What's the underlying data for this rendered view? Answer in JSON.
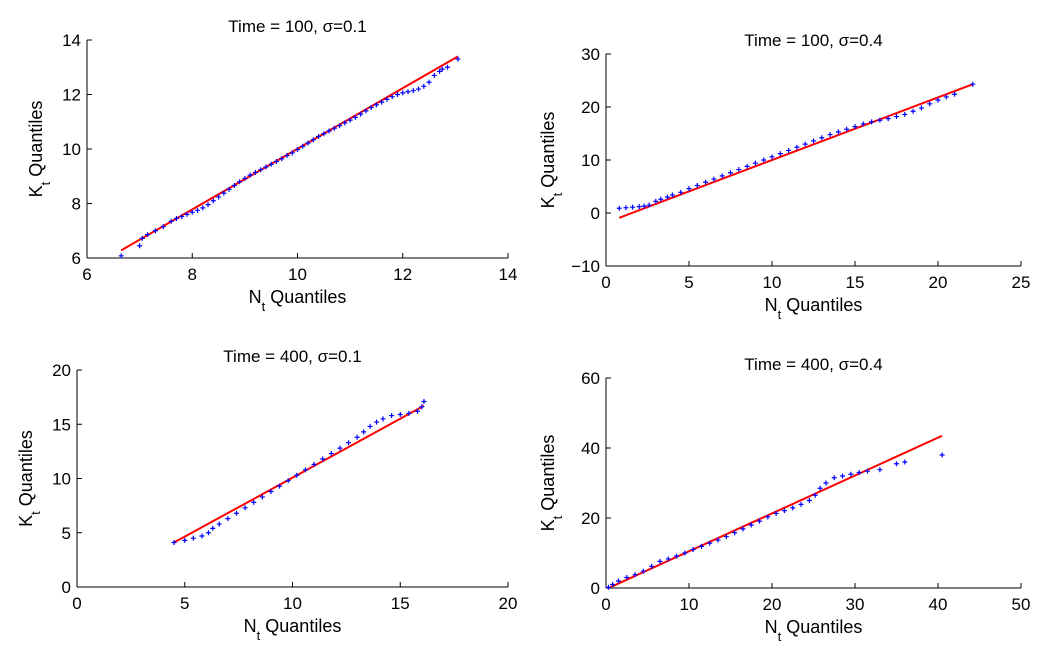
{
  "colors": {
    "points": "#0000ff",
    "fit_line": "#ff0000",
    "axes": "#000000"
  },
  "chart_data": [
    {
      "type": "scatter",
      "title": "Time = 100, σ=0.1",
      "xlabel": {
        "main": "N",
        "sub": "t",
        "rest": " Quantiles"
      },
      "ylabel": {
        "main": "K",
        "sub": "t",
        "rest": " Quantiles"
      },
      "xlim": [
        6,
        14
      ],
      "ylim": [
        6,
        14
      ],
      "xticks": [
        6,
        8,
        10,
        12,
        14
      ],
      "yticks": [
        6,
        8,
        10,
        12,
        14
      ],
      "xticklabels": [
        "6",
        "8",
        "10",
        "12",
        "14"
      ],
      "yticklabels": [
        "6",
        "8",
        "10",
        "12",
        "14"
      ],
      "grid": false,
      "fit_line": {
        "x": [
          6.65,
          13.05
        ],
        "y": [
          6.28,
          13.4
        ]
      },
      "points": [
        [
          6.65,
          6.08
        ],
        [
          7.0,
          6.45
        ],
        [
          7.05,
          6.72
        ],
        [
          7.15,
          6.86
        ],
        [
          7.3,
          7.0
        ],
        [
          7.45,
          7.15
        ],
        [
          7.6,
          7.35
        ],
        [
          7.7,
          7.45
        ],
        [
          7.8,
          7.52
        ],
        [
          7.9,
          7.6
        ],
        [
          8.0,
          7.68
        ],
        [
          8.1,
          7.75
        ],
        [
          8.2,
          7.84
        ],
        [
          8.3,
          7.96
        ],
        [
          8.4,
          8.1
        ],
        [
          8.5,
          8.24
        ],
        [
          8.6,
          8.38
        ],
        [
          8.7,
          8.52
        ],
        [
          8.8,
          8.66
        ],
        [
          8.9,
          8.8
        ],
        [
          9.0,
          8.92
        ],
        [
          9.1,
          9.04
        ],
        [
          9.2,
          9.14
        ],
        [
          9.3,
          9.24
        ],
        [
          9.4,
          9.34
        ],
        [
          9.5,
          9.44
        ],
        [
          9.6,
          9.54
        ],
        [
          9.7,
          9.64
        ],
        [
          9.8,
          9.76
        ],
        [
          9.9,
          9.86
        ],
        [
          10.0,
          9.98
        ],
        [
          10.1,
          10.1
        ],
        [
          10.2,
          10.22
        ],
        [
          10.3,
          10.34
        ],
        [
          10.4,
          10.46
        ],
        [
          10.5,
          10.56
        ],
        [
          10.6,
          10.66
        ],
        [
          10.7,
          10.76
        ],
        [
          10.8,
          10.86
        ],
        [
          10.9,
          10.96
        ],
        [
          11.0,
          11.06
        ],
        [
          11.1,
          11.16
        ],
        [
          11.2,
          11.28
        ],
        [
          11.3,
          11.4
        ],
        [
          11.4,
          11.52
        ],
        [
          11.5,
          11.62
        ],
        [
          11.6,
          11.72
        ],
        [
          11.7,
          11.82
        ],
        [
          11.8,
          11.92
        ],
        [
          11.9,
          12.0
        ],
        [
          12.0,
          12.06
        ],
        [
          12.1,
          12.1
        ],
        [
          12.2,
          12.14
        ],
        [
          12.3,
          12.2
        ],
        [
          12.4,
          12.3
        ],
        [
          12.5,
          12.45
        ],
        [
          12.6,
          12.7
        ],
        [
          12.7,
          12.85
        ],
        [
          12.75,
          12.93
        ],
        [
          12.85,
          13.0
        ],
        [
          13.05,
          13.3
        ]
      ]
    },
    {
      "type": "scatter",
      "title": "Time = 100, σ=0.4",
      "xlabel": {
        "main": "N",
        "sub": "t",
        "rest": " Quantiles"
      },
      "ylabel": {
        "main": "K",
        "sub": "t",
        "rest": " Quantiles"
      },
      "xlim": [
        0,
        25
      ],
      "ylim": [
        -10,
        30
      ],
      "xticks": [
        0,
        5,
        10,
        15,
        20,
        25
      ],
      "yticks": [
        -10,
        0,
        10,
        20,
        30
      ],
      "xticklabels": [
        "0",
        "5",
        "10",
        "15",
        "20",
        "25"
      ],
      "yticklabels": [
        "−10",
        "0",
        "10",
        "20",
        "30"
      ],
      "grid": false,
      "fit_line": {
        "x": [
          0.8,
          22.1
        ],
        "y": [
          -0.9,
          24.3
        ]
      },
      "points": [
        [
          0.8,
          0.9
        ],
        [
          1.2,
          1.0
        ],
        [
          1.6,
          1.1
        ],
        [
          2.0,
          1.2
        ],
        [
          2.3,
          1.3
        ],
        [
          2.6,
          1.5
        ],
        [
          3.0,
          2.2
        ],
        [
          3.3,
          2.6
        ],
        [
          3.7,
          3.0
        ],
        [
          4.0,
          3.4
        ],
        [
          4.5,
          3.9
        ],
        [
          5.0,
          4.6
        ],
        [
          5.5,
          5.2
        ],
        [
          6.0,
          5.8
        ],
        [
          6.5,
          6.4
        ],
        [
          7.0,
          7.0
        ],
        [
          7.5,
          7.6
        ],
        [
          8.0,
          8.2
        ],
        [
          8.5,
          8.8
        ],
        [
          9.0,
          9.4
        ],
        [
          9.5,
          10.0
        ],
        [
          10.0,
          10.6
        ],
        [
          10.5,
          11.2
        ],
        [
          11.0,
          11.8
        ],
        [
          11.5,
          12.4
        ],
        [
          12.0,
          13.0
        ],
        [
          12.5,
          13.6
        ],
        [
          13.0,
          14.2
        ],
        [
          13.5,
          14.8
        ],
        [
          14.0,
          15.3
        ],
        [
          14.5,
          15.8
        ],
        [
          15.0,
          16.3
        ],
        [
          15.5,
          16.8
        ],
        [
          16.0,
          17.2
        ],
        [
          16.5,
          17.5
        ],
        [
          17.0,
          17.8
        ],
        [
          17.5,
          18.2
        ],
        [
          18.0,
          18.6
        ],
        [
          18.5,
          19.2
        ],
        [
          19.0,
          19.8
        ],
        [
          19.5,
          20.6
        ],
        [
          20.0,
          21.3
        ],
        [
          20.5,
          21.9
        ],
        [
          21.0,
          22.4
        ],
        [
          22.1,
          24.3
        ]
      ]
    },
    {
      "type": "scatter",
      "title": "Time = 400, σ=0.1",
      "xlabel": {
        "main": "N",
        "sub": "t",
        "rest": " Quantiles"
      },
      "ylabel": {
        "main": "K",
        "sub": "t",
        "rest": " Quantiles"
      },
      "xlim": [
        0,
        20
      ],
      "ylim": [
        0,
        20
      ],
      "xticks": [
        0,
        5,
        10,
        15,
        20
      ],
      "yticks": [
        0,
        5,
        10,
        15,
        20
      ],
      "xticklabels": [
        "0",
        "5",
        "10",
        "15",
        "20"
      ],
      "yticklabels": [
        "0",
        "5",
        "10",
        "15",
        "20"
      ],
      "grid": false,
      "fit_line": {
        "x": [
          4.5,
          16.1
        ],
        "y": [
          4.1,
          16.7
        ]
      },
      "points": [
        [
          4.5,
          4.1
        ],
        [
          5.0,
          4.3
        ],
        [
          5.4,
          4.5
        ],
        [
          5.8,
          4.7
        ],
        [
          6.1,
          5.0
        ],
        [
          6.3,
          5.4
        ],
        [
          6.6,
          5.8
        ],
        [
          7.0,
          6.3
        ],
        [
          7.4,
          6.8
        ],
        [
          7.8,
          7.3
        ],
        [
          8.2,
          7.8
        ],
        [
          8.6,
          8.3
        ],
        [
          9.0,
          8.8
        ],
        [
          9.4,
          9.3
        ],
        [
          9.8,
          9.8
        ],
        [
          10.2,
          10.3
        ],
        [
          10.6,
          10.8
        ],
        [
          11.0,
          11.3
        ],
        [
          11.4,
          11.8
        ],
        [
          11.8,
          12.3
        ],
        [
          12.2,
          12.8
        ],
        [
          12.6,
          13.3
        ],
        [
          13.0,
          13.8
        ],
        [
          13.3,
          14.3
        ],
        [
          13.6,
          14.8
        ],
        [
          13.9,
          15.2
        ],
        [
          14.2,
          15.5
        ],
        [
          14.6,
          15.8
        ],
        [
          15.0,
          15.9
        ],
        [
          15.4,
          16.0
        ],
        [
          15.8,
          16.2
        ],
        [
          16.0,
          16.6
        ],
        [
          16.1,
          17.1
        ]
      ]
    },
    {
      "type": "scatter",
      "title": "Time = 400, σ=0.4",
      "xlabel": {
        "main": "N",
        "sub": "t",
        "rest": " Quantiles"
      },
      "ylabel": {
        "main": "K",
        "sub": "t",
        "rest": " Quantiles"
      },
      "xlim": [
        0,
        50
      ],
      "ylim": [
        0,
        60
      ],
      "xticks": [
        0,
        10,
        20,
        30,
        40,
        50
      ],
      "yticks": [
        0,
        20,
        40,
        60
      ],
      "xticklabels": [
        "0",
        "10",
        "20",
        "30",
        "40",
        "50"
      ],
      "yticklabels": [
        "0",
        "20",
        "40",
        "60"
      ],
      "grid": false,
      "fit_line": {
        "x": [
          0.5,
          40.5
        ],
        "y": [
          0.2,
          43.5
        ]
      },
      "points": [
        [
          0.3,
          0.2
        ],
        [
          0.8,
          1.0
        ],
        [
          1.5,
          2.0
        ],
        [
          2.5,
          3.0
        ],
        [
          3.5,
          3.8
        ],
        [
          4.5,
          4.8
        ],
        [
          5.5,
          6.2
        ],
        [
          6.5,
          7.6
        ],
        [
          7.5,
          8.3
        ],
        [
          8.5,
          9.1
        ],
        [
          9.5,
          10.0
        ],
        [
          10.5,
          11.0
        ],
        [
          11.5,
          11.9
        ],
        [
          12.5,
          12.8
        ],
        [
          13.5,
          13.7
        ],
        [
          14.5,
          14.7
        ],
        [
          15.5,
          15.8
        ],
        [
          16.5,
          16.9
        ],
        [
          17.5,
          18.0
        ],
        [
          18.5,
          19.1
        ],
        [
          19.5,
          20.3
        ],
        [
          20.5,
          21.3
        ],
        [
          21.5,
          22.1
        ],
        [
          22.5,
          22.9
        ],
        [
          23.5,
          23.9
        ],
        [
          24.5,
          25.0
        ],
        [
          25.2,
          26.5
        ],
        [
          25.8,
          28.5
        ],
        [
          26.5,
          30.0
        ],
        [
          27.5,
          31.5
        ],
        [
          28.5,
          32.0
        ],
        [
          29.5,
          32.5
        ],
        [
          30.5,
          33.0
        ],
        [
          31.5,
          33.4
        ],
        [
          33.0,
          33.8
        ],
        [
          35.0,
          35.5
        ],
        [
          36.0,
          36.0
        ],
        [
          40.5,
          38.0
        ]
      ]
    }
  ]
}
